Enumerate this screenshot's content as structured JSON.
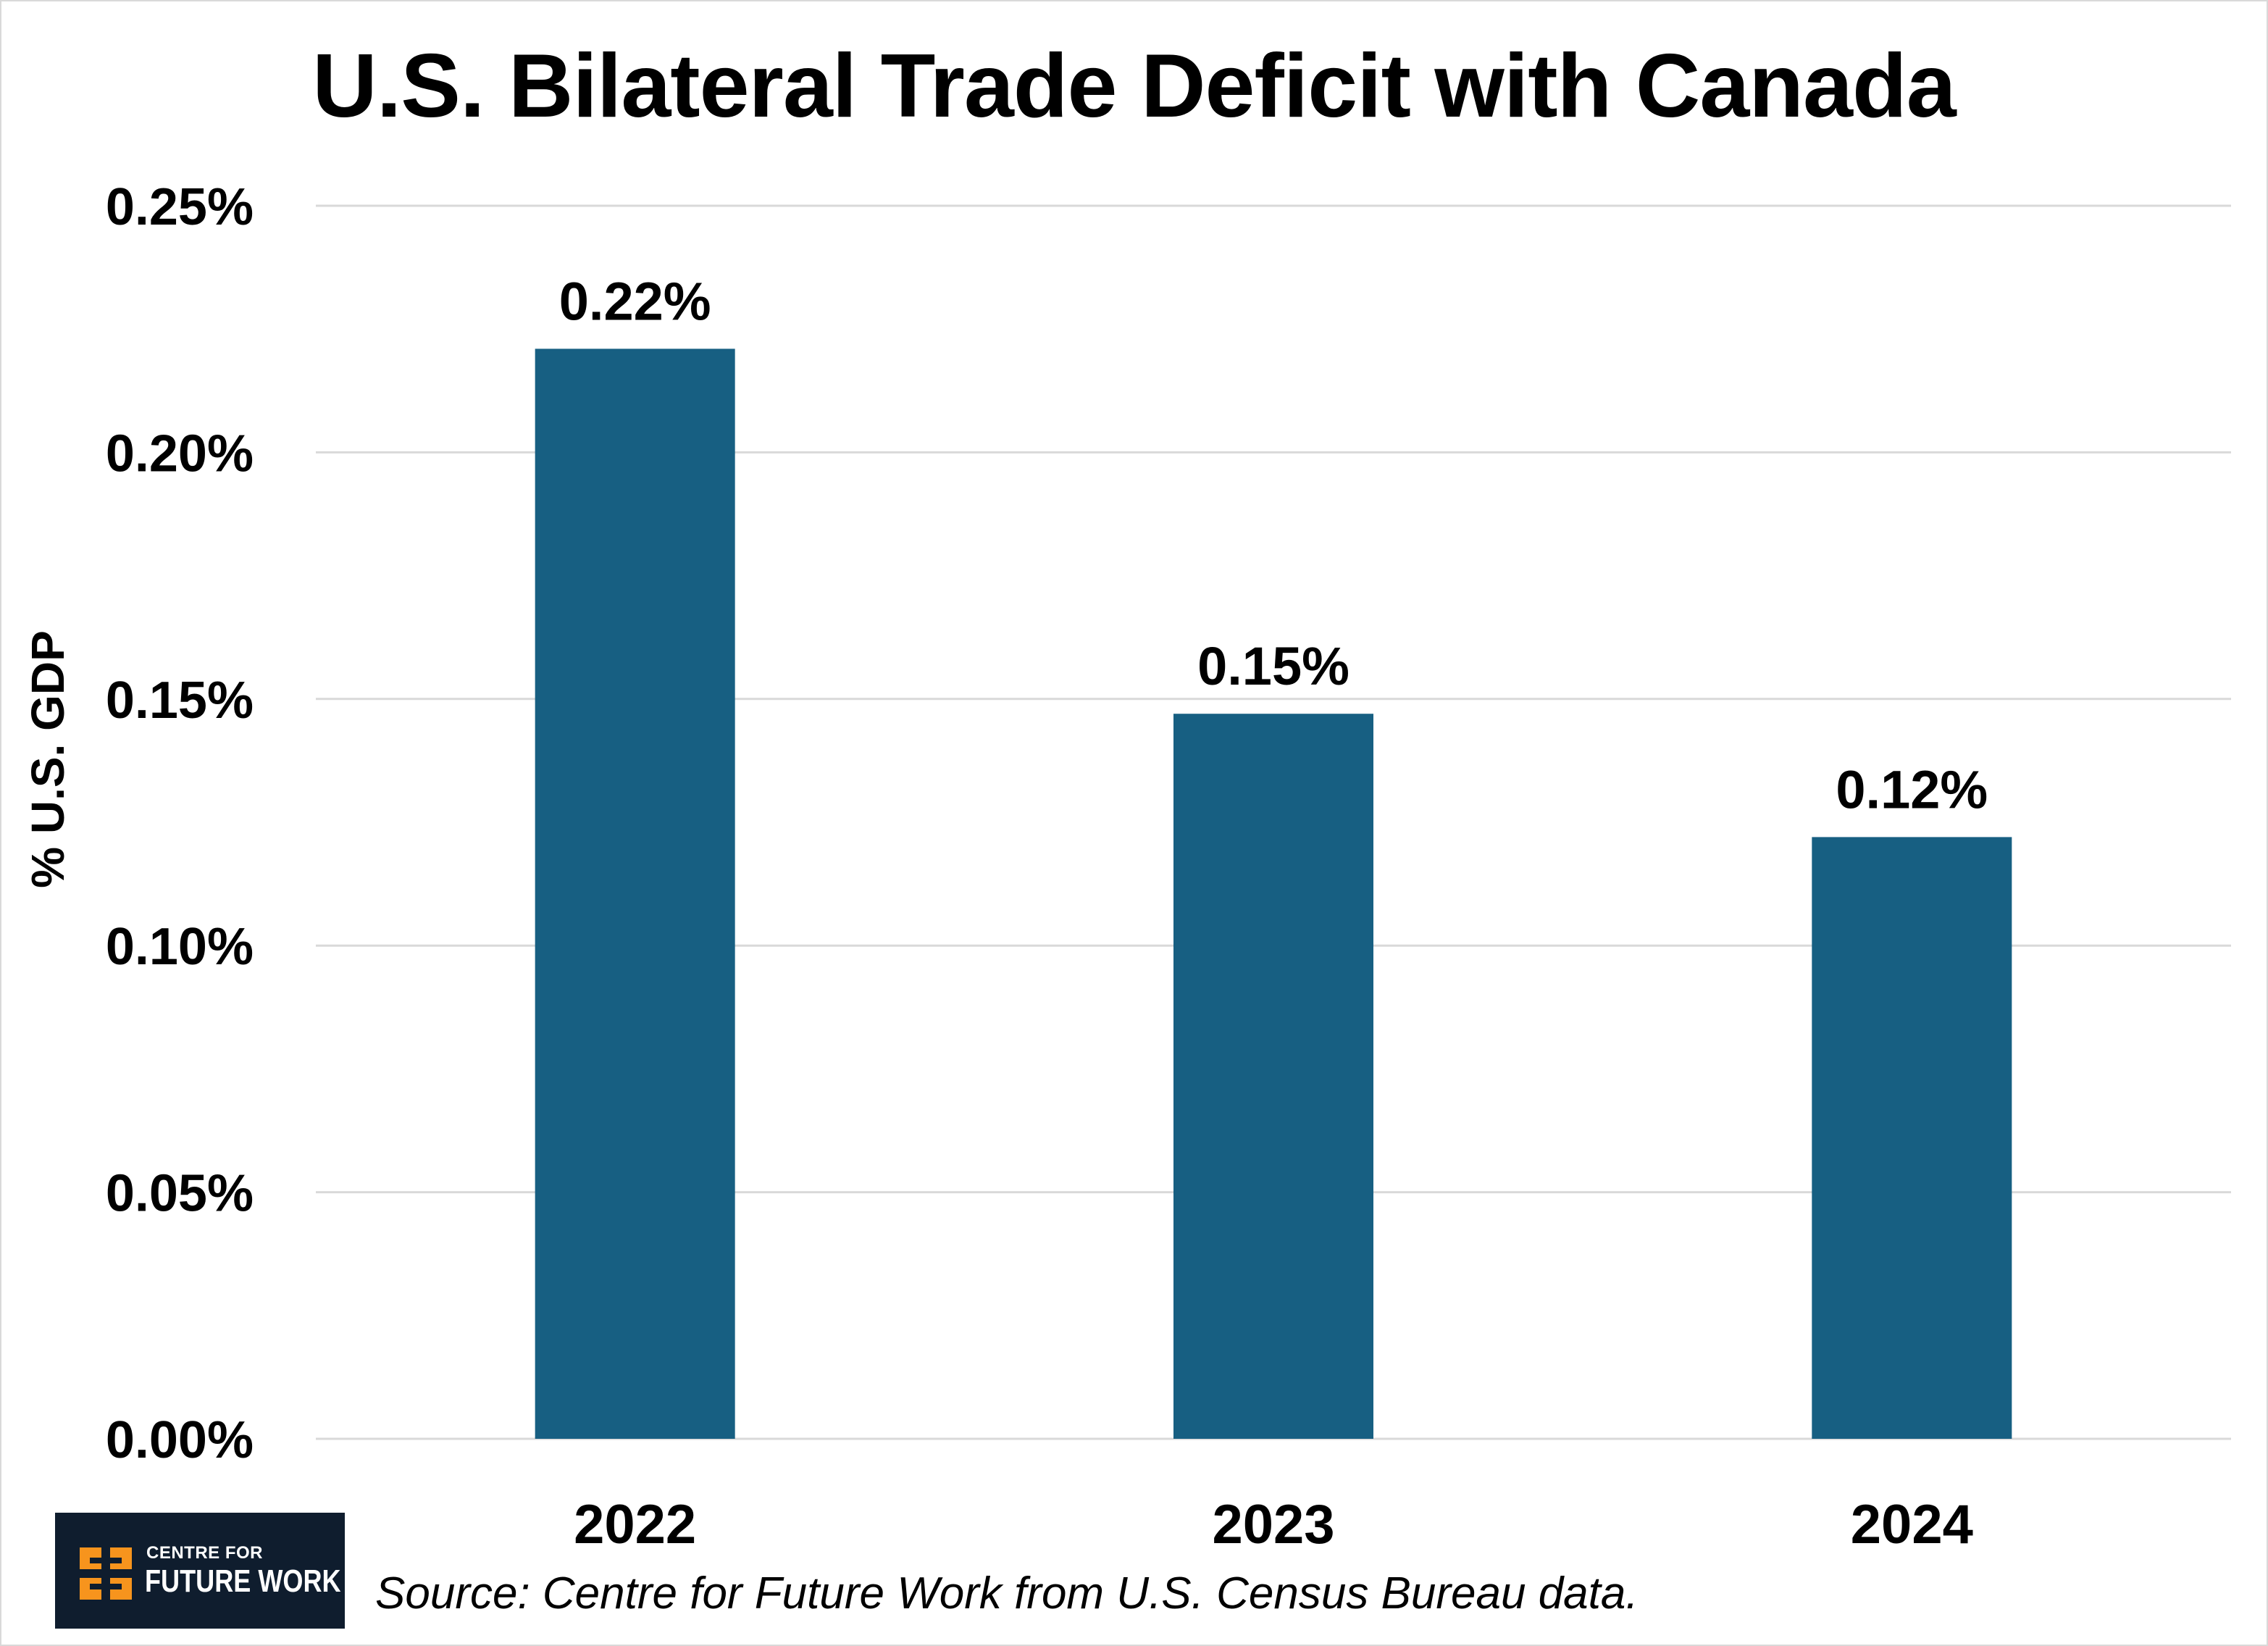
{
  "chart_data": {
    "type": "bar",
    "title": "U.S. Bilateral Trade Deficit with Canada",
    "ylabel": "% U.S. GDP",
    "xlabel": "",
    "categories": [
      "2022",
      "2023",
      "2024"
    ],
    "values": [
      0.221,
      0.147,
      0.122
    ],
    "data_labels": [
      "0.22%",
      "0.15%",
      "0.12%"
    ],
    "ylim": [
      0,
      0.25
    ],
    "yticks": [
      0,
      0.05,
      0.1,
      0.15,
      0.2,
      0.25
    ],
    "ytick_labels": [
      "0.00%",
      "0.05%",
      "0.10%",
      "0.15%",
      "0.20%",
      "0.25%"
    ],
    "grid": true,
    "bar_color": "#175f82",
    "grid_color": "#d9d9d9"
  },
  "logo": {
    "line1": "CENTRE FOR",
    "line2": "FUTURE WORK",
    "mark_color": "#f7941d"
  },
  "source": "Source: Centre for Future Work from U.S. Census Bureau data."
}
